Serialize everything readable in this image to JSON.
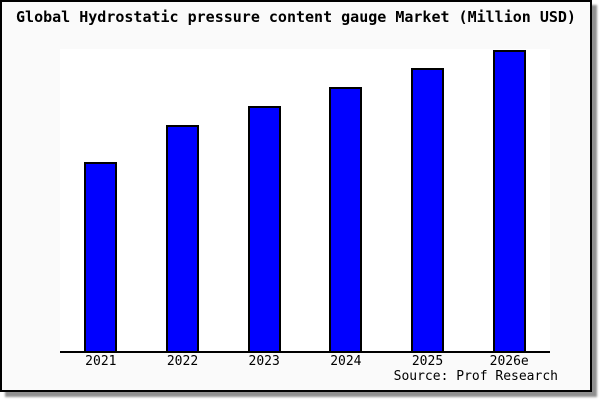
{
  "title": "Global Hydrostatic pressure content gauge Market (Million USD)",
  "source_credit": "Source: Prof Research",
  "colors": {
    "bar_fill": "#0000ff",
    "bar_edge": "#000000",
    "plot_background": "#ffffff",
    "frame_background": "#fafafa",
    "frame_border": "#000000",
    "shadow": "#909090",
    "text": "#000000"
  },
  "chart_data": {
    "type": "bar",
    "title": "Global Hydrostatic pressure content gauge Market (Million USD)",
    "categories": [
      "2021",
      "2022",
      "2023",
      "2024",
      "2025",
      "2026e"
    ],
    "values": [
      62.6,
      74.8,
      81.1,
      87.4,
      93.7,
      99.7
    ],
    "xlabel": "",
    "ylabel": "",
    "ylim": [
      0,
      100
    ],
    "y_axis_visible": false,
    "grid": false,
    "legend_position": "none",
    "annotation": "No y-axis scale shown in the image; values estimated as percent of plot height (tallest bar ~100)"
  }
}
